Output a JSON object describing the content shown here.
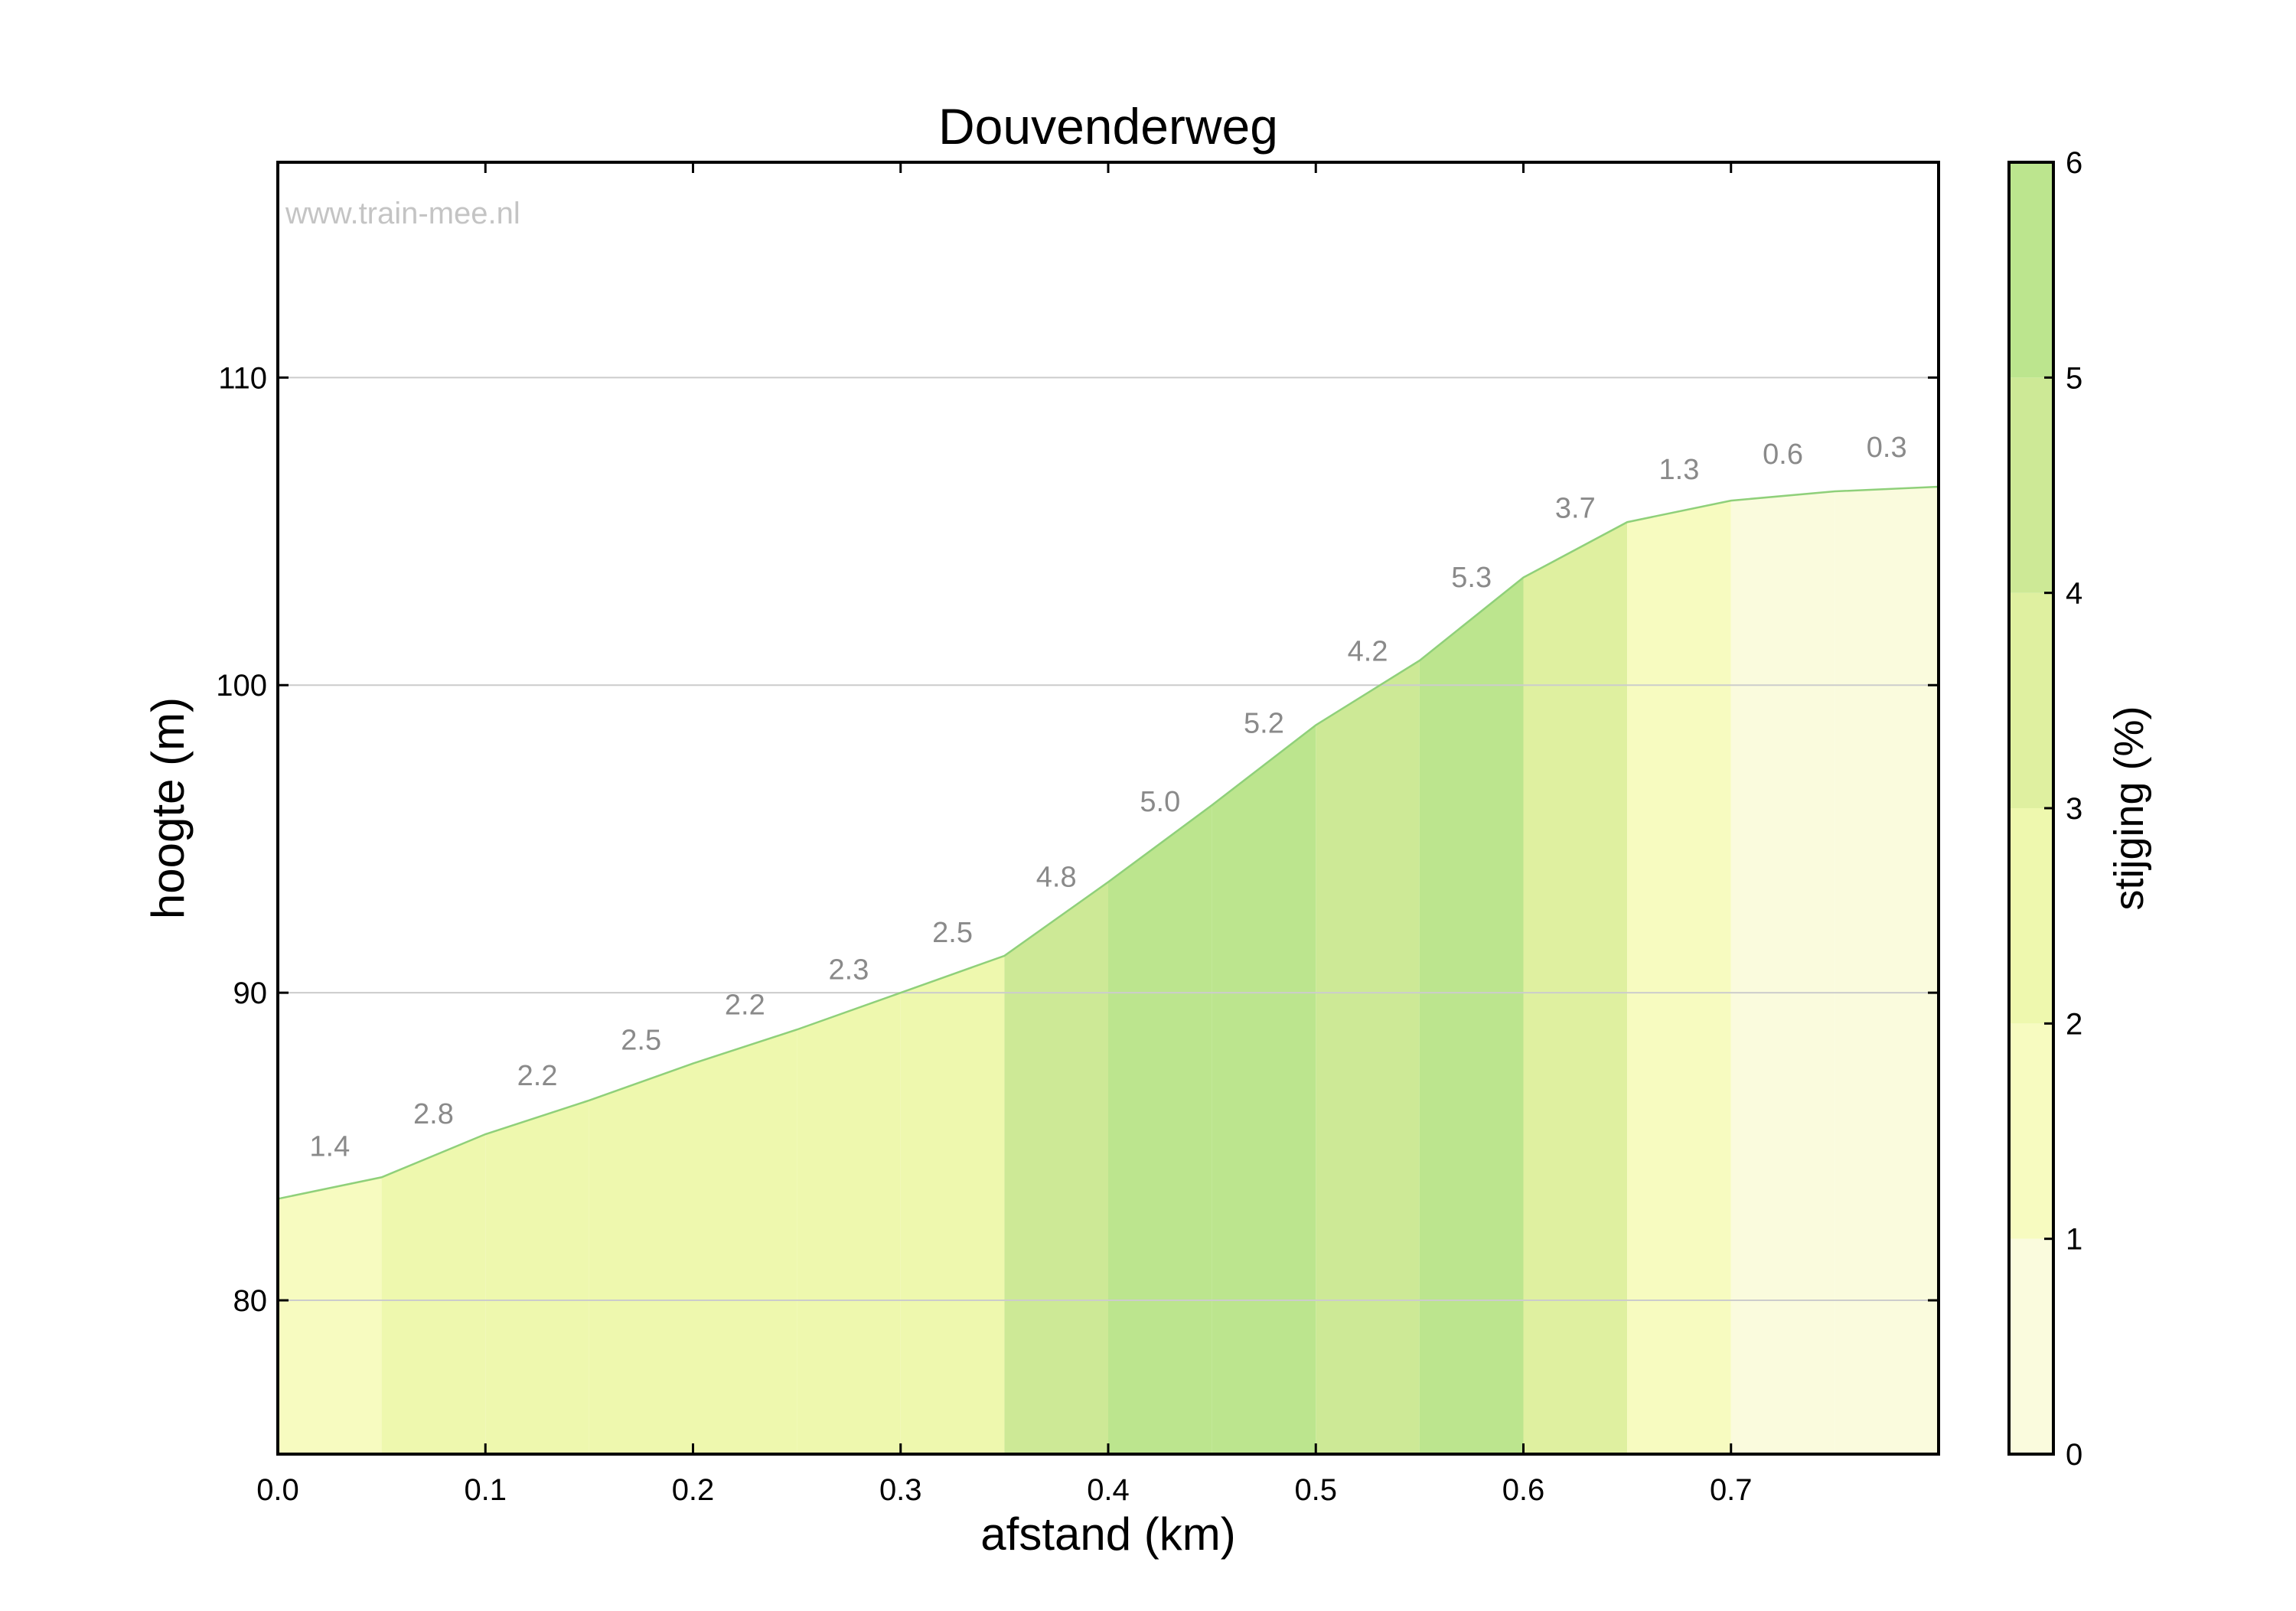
{
  "chart_data": {
    "type": "area",
    "title": "Douvenderweg",
    "watermark": "www.train-mee.nl",
    "xlabel": "afstand (km)",
    "ylabel": "hoogte (m)",
    "xlim": [
      0,
      0.8
    ],
    "ylim": [
      75,
      117
    ],
    "xticks": [
      0.0,
      0.1,
      0.2,
      0.3,
      0.4,
      0.5,
      0.6,
      0.7
    ],
    "xtick_labels": [
      "0.0",
      "0.1",
      "0.2",
      "0.3",
      "0.4",
      "0.5",
      "0.6",
      "0.7"
    ],
    "yticks": [
      80,
      90,
      100,
      110
    ],
    "ytick_labels": [
      "80",
      "90",
      "100",
      "110"
    ],
    "grid": "horizontal",
    "elevation_profile": {
      "x": [
        0.0,
        0.05,
        0.1,
        0.15,
        0.2,
        0.25,
        0.3,
        0.35,
        0.4,
        0.45,
        0.5,
        0.55,
        0.6,
        0.65,
        0.7,
        0.75,
        0.8
      ],
      "y": [
        83.3,
        84.0,
        85.4,
        86.5,
        87.7,
        88.8,
        90.0,
        91.2,
        93.6,
        96.1,
        98.7,
        100.8,
        103.5,
        105.3,
        106.0,
        106.3,
        106.45
      ]
    },
    "segments": [
      {
        "start": 0.0,
        "end": 0.05,
        "gradient": 1.4,
        "label": "1.4"
      },
      {
        "start": 0.05,
        "end": 0.1,
        "gradient": 2.8,
        "label": "2.8"
      },
      {
        "start": 0.1,
        "end": 0.15,
        "gradient": 2.2,
        "label": "2.2"
      },
      {
        "start": 0.15,
        "end": 0.2,
        "gradient": 2.5,
        "label": "2.5"
      },
      {
        "start": 0.2,
        "end": 0.25,
        "gradient": 2.2,
        "label": "2.2"
      },
      {
        "start": 0.25,
        "end": 0.3,
        "gradient": 2.3,
        "label": "2.3"
      },
      {
        "start": 0.3,
        "end": 0.35,
        "gradient": 2.5,
        "label": "2.5"
      },
      {
        "start": 0.35,
        "end": 0.4,
        "gradient": 4.8,
        "label": "4.8"
      },
      {
        "start": 0.4,
        "end": 0.45,
        "gradient": 5.0,
        "label": "5.0"
      },
      {
        "start": 0.45,
        "end": 0.5,
        "gradient": 5.2,
        "label": "5.2"
      },
      {
        "start": 0.5,
        "end": 0.55,
        "gradient": 4.2,
        "label": "4.2"
      },
      {
        "start": 0.55,
        "end": 0.6,
        "gradient": 5.3,
        "label": "5.3"
      },
      {
        "start": 0.6,
        "end": 0.65,
        "gradient": 3.7,
        "label": "3.7"
      },
      {
        "start": 0.65,
        "end": 0.7,
        "gradient": 1.3,
        "label": "1.3"
      },
      {
        "start": 0.7,
        "end": 0.75,
        "gradient": 0.6,
        "label": "0.6"
      },
      {
        "start": 0.75,
        "end": 0.8,
        "gradient": 0.3,
        "label": "0.3"
      }
    ],
    "colorbar": {
      "label": "stijging (%)",
      "range": [
        0,
        6
      ],
      "ticks": [
        0,
        1,
        2,
        3,
        4,
        5,
        6
      ],
      "tick_labels": [
        "0",
        "1",
        "2",
        "3",
        "4",
        "5",
        "6"
      ],
      "colors": [
        "#fafbdd",
        "#f7fbc0",
        "#eef8ae",
        "#dff0a0",
        "#cde996",
        "#bce58e"
      ],
      "line_color": "#8fd07a"
    }
  }
}
